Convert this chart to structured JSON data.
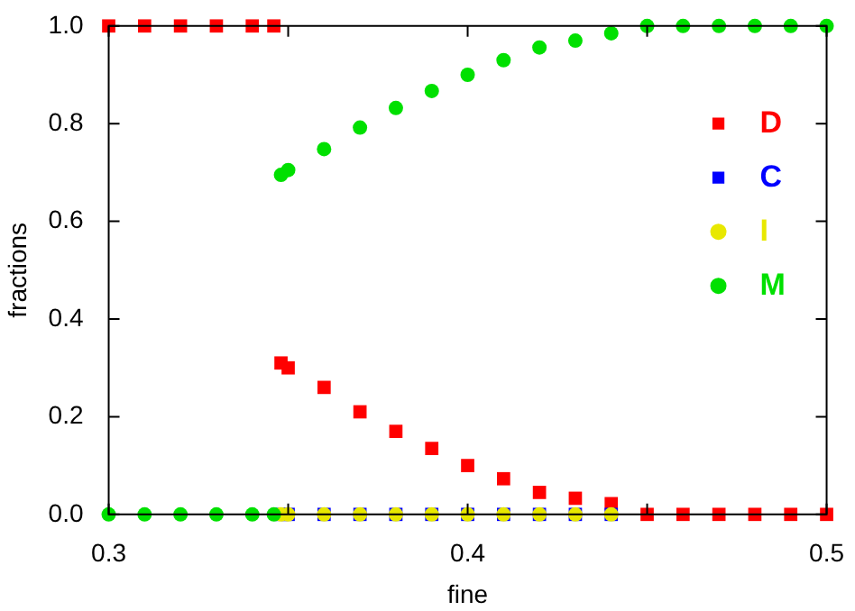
{
  "chart_data": {
    "type": "scatter",
    "xlabel": "fine",
    "ylabel": "fractions",
    "x": [
      0.3,
      0.31,
      0.32,
      0.33,
      0.34,
      0.346,
      0.348,
      0.35,
      0.36,
      0.37,
      0.38,
      0.39,
      0.4,
      0.41,
      0.42,
      0.43,
      0.44,
      0.45,
      0.46,
      0.47,
      0.48,
      0.49,
      0.5
    ],
    "series": [
      {
        "name": "D",
        "color": "#ff0000",
        "marker": "square",
        "values": [
          1,
          1,
          1,
          1,
          1,
          1,
          0.31,
          0.3,
          0.26,
          0.21,
          0.17,
          0.135,
          0.1,
          0.073,
          0.045,
          0.033,
          0.022,
          0,
          0,
          0,
          0,
          0,
          0
        ]
      },
      {
        "name": "C",
        "color": "#0000ff",
        "marker": "square",
        "values": [
          null,
          null,
          null,
          null,
          null,
          null,
          0,
          0,
          0,
          0,
          0,
          0,
          0,
          0,
          0,
          0,
          0,
          null,
          null,
          null,
          null,
          null,
          null
        ]
      },
      {
        "name": "I",
        "color": "#e8e800",
        "marker": "circle",
        "values": [
          null,
          null,
          null,
          null,
          null,
          null,
          0,
          0,
          0,
          0,
          0,
          0,
          0,
          0,
          0,
          0,
          0,
          null,
          null,
          null,
          null,
          null,
          null
        ]
      },
      {
        "name": "M",
        "color": "#00e000",
        "marker": "circle",
        "values": [
          0,
          0,
          0,
          0,
          0,
          0,
          0.695,
          0.705,
          0.748,
          0.792,
          0.832,
          0.867,
          0.9,
          0.93,
          0.956,
          0.97,
          0.985,
          1,
          1,
          1,
          1,
          1,
          1
        ]
      }
    ],
    "xlim": [
      0.3,
      0.5
    ],
    "xticks": [
      0.3,
      {
        "value": 0.35,
        "label": null
      },
      0.4,
      {
        "value": 0.45,
        "label": null
      },
      0.5
    ],
    "ylim": [
      0,
      1
    ],
    "yticks": [
      {
        "value": 0,
        "label": "0.0"
      },
      0.2,
      0.4,
      0.6,
      0.8,
      {
        "value": 1,
        "label": "1.0"
      }
    ],
    "grid": false,
    "legend": "right"
  }
}
